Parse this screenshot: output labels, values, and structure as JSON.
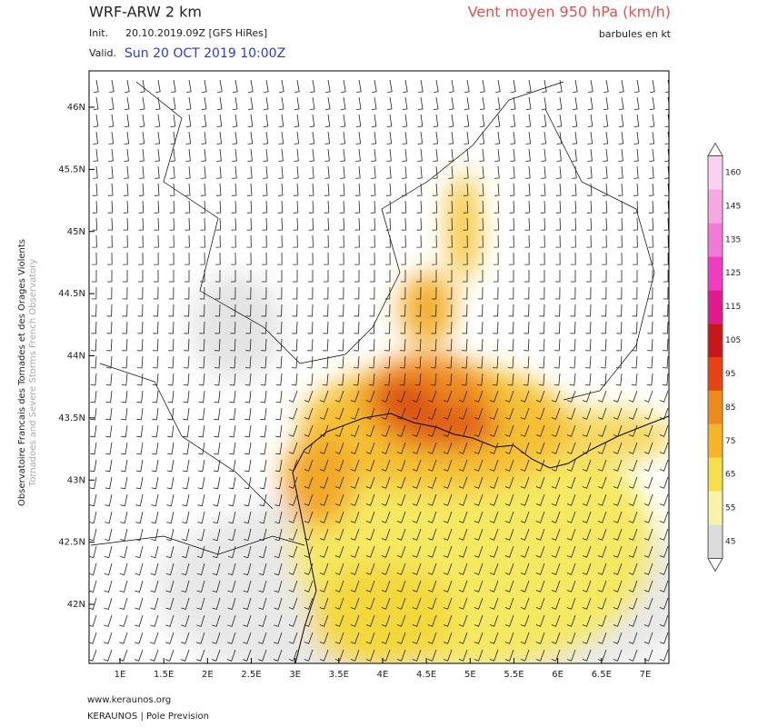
{
  "header": {
    "model": "WRF-ARW 2 km",
    "init_label": "Init.",
    "init": "20.10.2019.09Z [GFS HiRes]",
    "valid_label": "Valid.",
    "valid": "Sun 20 OCT 2019 10:00Z",
    "field": "Vent moyen 950 hPa (km/h)",
    "barbs": "barbules en kt"
  },
  "map": {
    "lat_ticks": [
      {
        "value": 46,
        "label": "46N"
      },
      {
        "value": 45.5,
        "label": "45.5N"
      },
      {
        "value": 45,
        "label": "45N"
      },
      {
        "value": 44.5,
        "label": "44.5N"
      },
      {
        "value": 44,
        "label": "44N"
      },
      {
        "value": 43.5,
        "label": "43.5N"
      },
      {
        "value": 43,
        "label": "43N"
      },
      {
        "value": 42.5,
        "label": "42.5N"
      },
      {
        "value": 42,
        "label": "42N"
      }
    ],
    "lon_ticks": [
      {
        "value": 1,
        "label": "1E"
      },
      {
        "value": 1.5,
        "label": "1.5E"
      },
      {
        "value": 2,
        "label": "2E"
      },
      {
        "value": 2.5,
        "label": "2.5E"
      },
      {
        "value": 3,
        "label": "3E"
      },
      {
        "value": 3.5,
        "label": "3.5E"
      },
      {
        "value": 4,
        "label": "4E"
      },
      {
        "value": 4.5,
        "label": "4.5E"
      },
      {
        "value": 5,
        "label": "5E"
      },
      {
        "value": 5.5,
        "label": "5.5E"
      },
      {
        "value": 6,
        "label": "6E"
      },
      {
        "value": 6.5,
        "label": "6.5E"
      },
      {
        "value": 7,
        "label": "7E"
      }
    ]
  },
  "legend": {
    "ticks": [
      45,
      55,
      65,
      75,
      85,
      95,
      105,
      115,
      125,
      135,
      145,
      160
    ],
    "colors": [
      "#dcdcdc",
      "#f7f3a8",
      "#f5e04a",
      "#f6b526",
      "#ef8a1c",
      "#e64212",
      "#c8161a",
      "#e01a8c",
      "#f03cc0",
      "#f27ad4",
      "#f6a8e2",
      "#fad2f0"
    ]
  },
  "side": {
    "line1": "Observatoire Francais des Tornades et des Orages Violents",
    "line2": "Tornadoes and Severe Storms French Observatory"
  },
  "footer": {
    "site": "www.keraunos.org",
    "org": "KERAUNOS | Pole Prevision"
  }
}
